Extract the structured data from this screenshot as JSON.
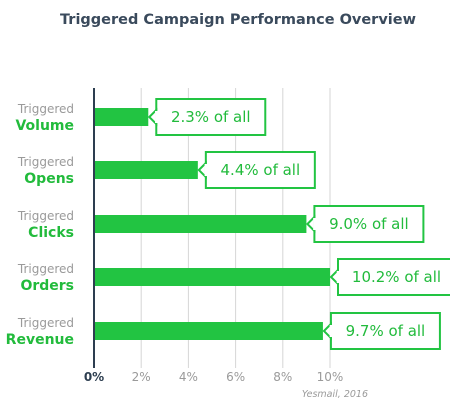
{
  "title": "Triggered Campaign Performance Overview",
  "source": "Yesmail, 2016",
  "colors": {
    "bar": "#22c442",
    "label_green": "#22bb3c",
    "label_grey": "#9a9a9a",
    "axis": "#2d3e50",
    "grid": "#d6d6d6",
    "title": "#3a4a5c"
  },
  "chart_data": {
    "type": "bar",
    "orientation": "horizontal",
    "title": "Triggered Campaign Performance Overview",
    "categories": [
      {
        "prefix": "Triggered",
        "name": "Volume"
      },
      {
        "prefix": "Triggered",
        "name": "Opens"
      },
      {
        "prefix": "Triggered",
        "name": "Clicks"
      },
      {
        "prefix": "Triggered",
        "name": "Orders"
      },
      {
        "prefix": "Triggered",
        "name": "Revenue"
      }
    ],
    "values": [
      2.3,
      4.4,
      9.0,
      10.2,
      9.7
    ],
    "data_labels": [
      "2.3% of all",
      "4.4% of all",
      "9.0% of all",
      "10.2% of all",
      "9.7% of all"
    ],
    "xlim": [
      0,
      10
    ],
    "xticks": [
      "0%",
      "2%",
      "4%",
      "6%",
      "8%",
      "10%"
    ],
    "xtick_values": [
      0,
      2,
      4,
      6,
      8,
      10
    ],
    "grid": true
  }
}
